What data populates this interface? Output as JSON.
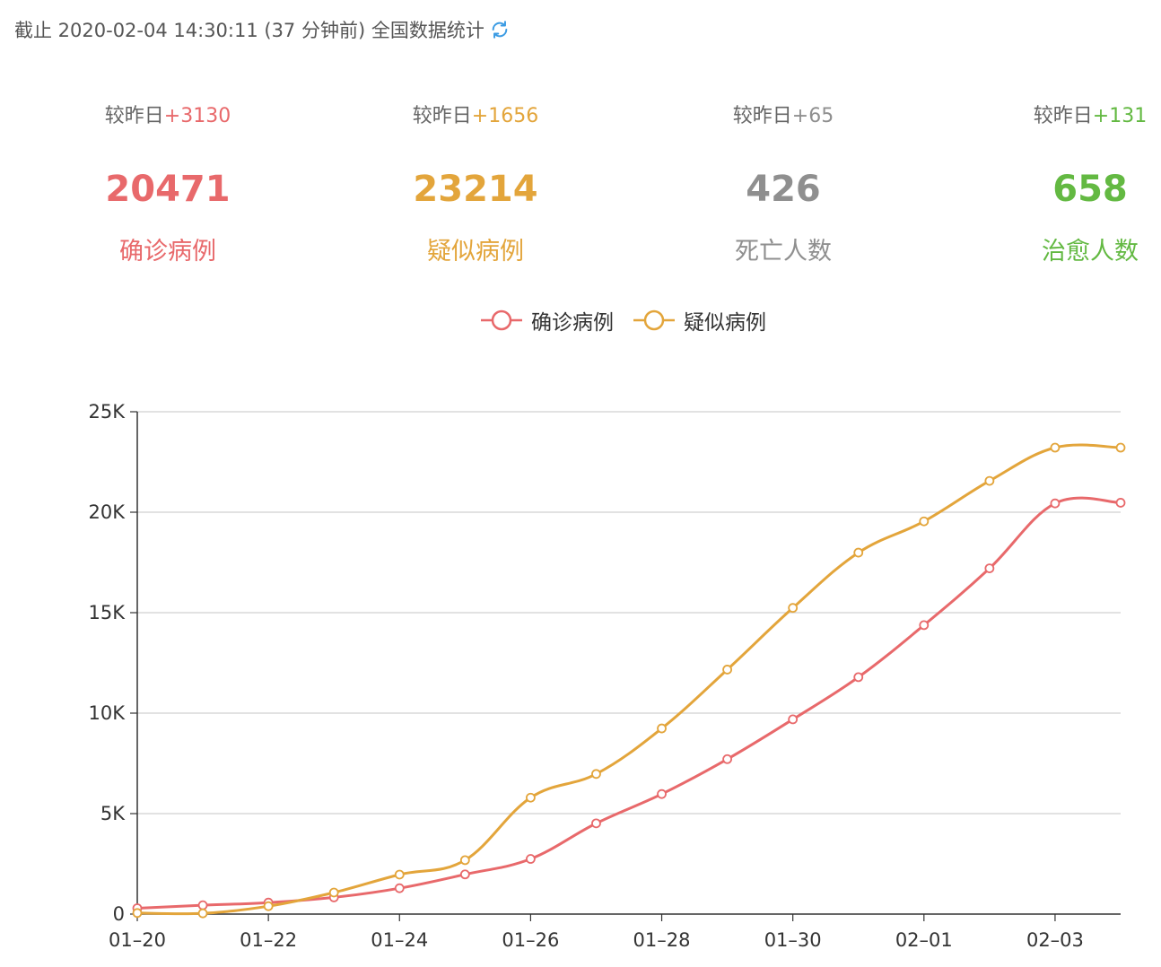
{
  "header": {
    "text": "截止 2020-02-04 14:30:11 (37 分钟前) 全国数据统计",
    "refresh_icon": "refresh-icon"
  },
  "stats": [
    {
      "delta_label": "较昨日",
      "delta_value": "+3130",
      "value": "20471",
      "label": "确诊病例",
      "color": "#e8696b"
    },
    {
      "delta_label": "较昨日",
      "delta_value": "+1656",
      "value": "23214",
      "label": "疑似病例",
      "color": "#e3a53b"
    },
    {
      "delta_label": "较昨日",
      "delta_value": "+65",
      "value": "426",
      "label": "死亡人数",
      "color": "#8f8f8f"
    },
    {
      "delta_label": "较昨日",
      "delta_value": "+131",
      "value": "658",
      "label": "治愈人数",
      "color": "#63b942"
    }
  ],
  "chart_data": {
    "type": "line",
    "x": [
      "01-20",
      "01-21",
      "01-22",
      "01-23",
      "01-24",
      "01-25",
      "01-26",
      "01-27",
      "01-28",
      "01-29",
      "01-30",
      "01-31",
      "02-01",
      "02-02",
      "02-03",
      "02-04"
    ],
    "x_tick_labels": [
      "01-20",
      "01-22",
      "01-24",
      "01-26",
      "01-28",
      "01-30",
      "02-01",
      "02-03"
    ],
    "series": [
      {
        "name": "确诊病例",
        "color": "#e8696b",
        "values": [
          291,
          440,
          571,
          830,
          1287,
          1975,
          2744,
          4515,
          5974,
          7711,
          9692,
          11791,
          14380,
          17205,
          20438,
          20471
        ]
      },
      {
        "name": "疑似病例",
        "color": "#e3a53b",
        "values": [
          54,
          37,
          393,
          1072,
          1965,
          2684,
          5794,
          6973,
          9239,
          12167,
          15238,
          17988,
          19544,
          21558,
          23214,
          23214
        ]
      }
    ],
    "ylim": [
      0,
      25000
    ],
    "y_ticks": [
      0,
      5000,
      10000,
      15000,
      20000,
      25000
    ],
    "y_tick_labels": [
      "0",
      "5K",
      "10K",
      "15K",
      "20K",
      "25K"
    ],
    "grid": true,
    "legend_position": "top-center"
  }
}
